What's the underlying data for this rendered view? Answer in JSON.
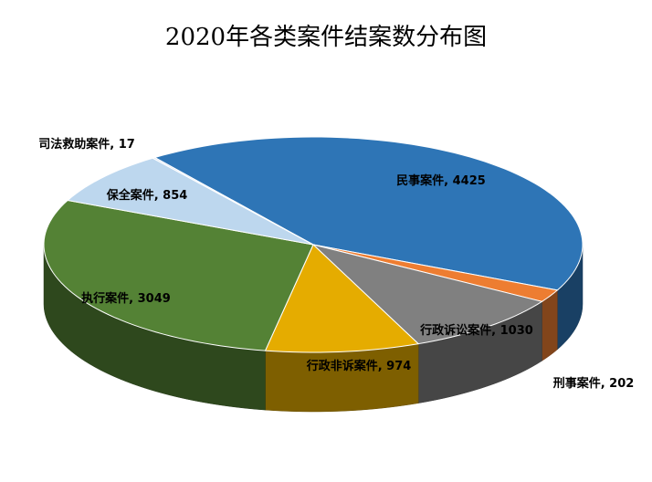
{
  "chart_data": {
    "type": "pie3d",
    "title": "2020年各类案件结案数分布图",
    "categories": [
      "民事案件",
      "刑事案件",
      "行政诉讼案件",
      "行政非诉案件",
      "执行案件",
      "保全案件",
      "司法救助案件"
    ],
    "values": [
      4425,
      202,
      1030,
      974,
      3049,
      854,
      17
    ],
    "colors": [
      "#2e75b6",
      "#ed7d31",
      "#808080",
      "#e5ac00",
      "#548235",
      "#bdd7ee",
      "#dae3f3"
    ]
  }
}
